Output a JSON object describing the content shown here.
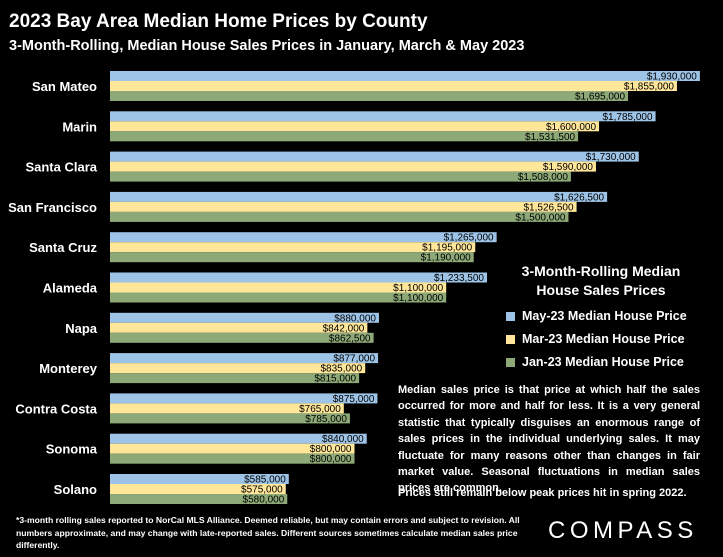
{
  "title": "2023 Bay Area Median Home Prices by County",
  "subtitle": "3-Month-Rolling, Median House Sales Prices in January, March & May 2023",
  "legend": {
    "title_line1": "3-Month-Rolling Median",
    "title_line2": "House Sales Prices"
  },
  "note": "Median sales price is that price at which half the sales occurred for more and half for less. It is a very general statistic that typically disguises an enormous range of sales prices in the individual underlying sales. It may fluctuate for many reasons other than changes in fair market value. Seasonal fluctuations in median sales prices are common.",
  "note2": "Prices still remain below peak prices hit in spring 2022.",
  "footnote": "*3-month rolling sales reported to NorCal MLS Alliance. Deemed reliable, but may contain errors and subject to revision. All numbers approximate, and may change with late-reported sales.  Different sources sometimes calculate median sales price differently.",
  "logo": "COMPASS",
  "chart_data": {
    "type": "bar",
    "orientation": "horizontal",
    "categories": [
      "San Mateo",
      "Marin",
      "Santa Clara",
      "San Francisco",
      "Santa Cruz",
      "Alameda",
      "Napa",
      "Monterey",
      "Contra Costa",
      "Sonoma",
      "Solano"
    ],
    "series": [
      {
        "name": "May-23 Median House Price",
        "color": "#9DC3E6",
        "values": [
          1930000,
          1785000,
          1730000,
          1626500,
          1265000,
          1233500,
          880000,
          877000,
          875000,
          840000,
          585000
        ],
        "labels": [
          "$1,930,000",
          "$1,785,000",
          "$1,730,000",
          "$1,626,500",
          "$1,265,000",
          "$1,233,500",
          "$880,000",
          "$877,000",
          "$875,000",
          "$840,000",
          "$585,000"
        ]
      },
      {
        "name": "Mar-23 Median House Price",
        "color": "#FFE699",
        "values": [
          1855000,
          1600000,
          1590000,
          1526500,
          1195000,
          1100000,
          842000,
          835000,
          765000,
          800000,
          575000
        ],
        "labels": [
          "$1,855,000",
          "$1,600,000",
          "$1,590,000",
          "$1,526,500",
          "$1,195,000",
          "$1,100,000",
          "$842,000",
          "$835,000",
          "$765,000",
          "$800,000",
          "$575,000"
        ]
      },
      {
        "name": "Jan-23 Median House Price",
        "color": "#8DA977",
        "values": [
          1695000,
          1531500,
          1508000,
          1500000,
          1190000,
          1100000,
          862500,
          815000,
          785000,
          800000,
          580000
        ],
        "labels": [
          "$1,695,000",
          "$1,531,500",
          "$1,508,000",
          "$1,500,000",
          "$1,190,000",
          "$1,100,000",
          "$862,500",
          "$815,000",
          "$785,000",
          "$800,000",
          "$580,000"
        ]
      }
    ],
    "xlim": [
      0,
      1950000
    ],
    "grid": false,
    "legend_position": "right"
  }
}
